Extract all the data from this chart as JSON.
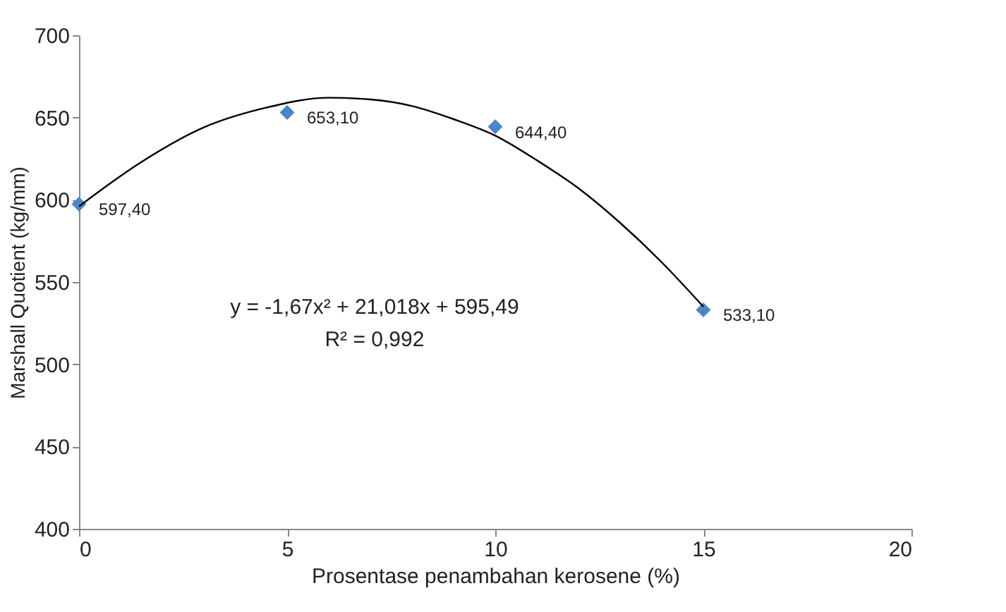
{
  "chart_data": {
    "type": "scatter",
    "xlabel": "Prosentase penambahan kerosene (%)",
    "ylabel": "Marshall Quotient (kg/mm)",
    "x": [
      0,
      5,
      10,
      15
    ],
    "series": [
      {
        "type": "scatter",
        "color": "#4a86c8",
        "marker": "diamond",
        "values": [
          597.4,
          653.1,
          644.4,
          533.1
        ],
        "value_labels": [
          "597,40",
          "653,10",
          "644,40",
          "533,10"
        ]
      },
      {
        "type": "line",
        "color": "#000000",
        "marker": "none",
        "x": [
          0,
          1.5,
          3,
          4.5,
          6,
          7,
          8,
          9,
          10,
          11,
          12,
          13,
          14,
          15
        ],
        "values": [
          596,
          623,
          644,
          656,
          662,
          661,
          657,
          649,
          639,
          624,
          607,
          586,
          562,
          535
        ]
      }
    ],
    "annotations": [
      "y = -1,67x² + 21,018x + 595,49",
      "R² = 0,992"
    ],
    "xlim": [
      0,
      20
    ],
    "xticks": [
      0,
      5,
      10,
      15,
      20
    ],
    "ylim": [
      400,
      700
    ],
    "yticks": [
      400,
      450,
      500,
      550,
      600,
      650,
      700
    ],
    "grid": false
  }
}
